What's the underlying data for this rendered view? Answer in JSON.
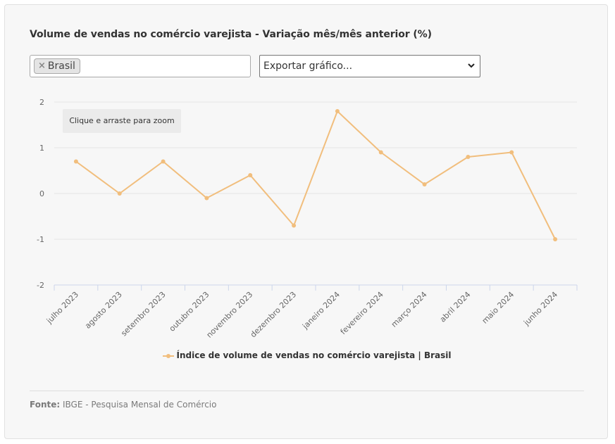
{
  "header": {
    "title": "Volume de vendas no comércio varejista - Variação mês/mês anterior (%)"
  },
  "filters": {
    "tag_remove": "×",
    "tag_label": "Brasil",
    "export_label": "Exportar gráfico..."
  },
  "zoom_hint": "Clique e arraste para zoom",
  "footer": {
    "source_prefix": "Fonte:",
    "source_text": "IBGE - Pesquisa Mensal de Comércio"
  },
  "colors": {
    "series": "#f1be7d",
    "grid": "#e6e6e6",
    "axis": "#ccd6eb"
  },
  "chart_data": {
    "type": "line",
    "categories": [
      "julho 2023",
      "agosto 2023",
      "setembro 2023",
      "outubro 2023",
      "novembro 2023",
      "dezembro 2023",
      "janeiro 2024",
      "fevereiro 2024",
      "março 2024",
      "abril 2024",
      "maio 2024",
      "junho 2024"
    ],
    "series": [
      {
        "name": "Índice de volume de vendas no comércio varejista | Brasil",
        "values": [
          0.7,
          0.0,
          0.7,
          -0.1,
          0.4,
          -0.7,
          1.8,
          0.9,
          0.2,
          0.8,
          0.9,
          -1.0
        ]
      }
    ],
    "yticks": [
      2,
      1,
      0,
      -1,
      -2
    ],
    "ylim": [
      -2,
      2
    ],
    "grid": true,
    "legend_position": "bottom-center"
  }
}
